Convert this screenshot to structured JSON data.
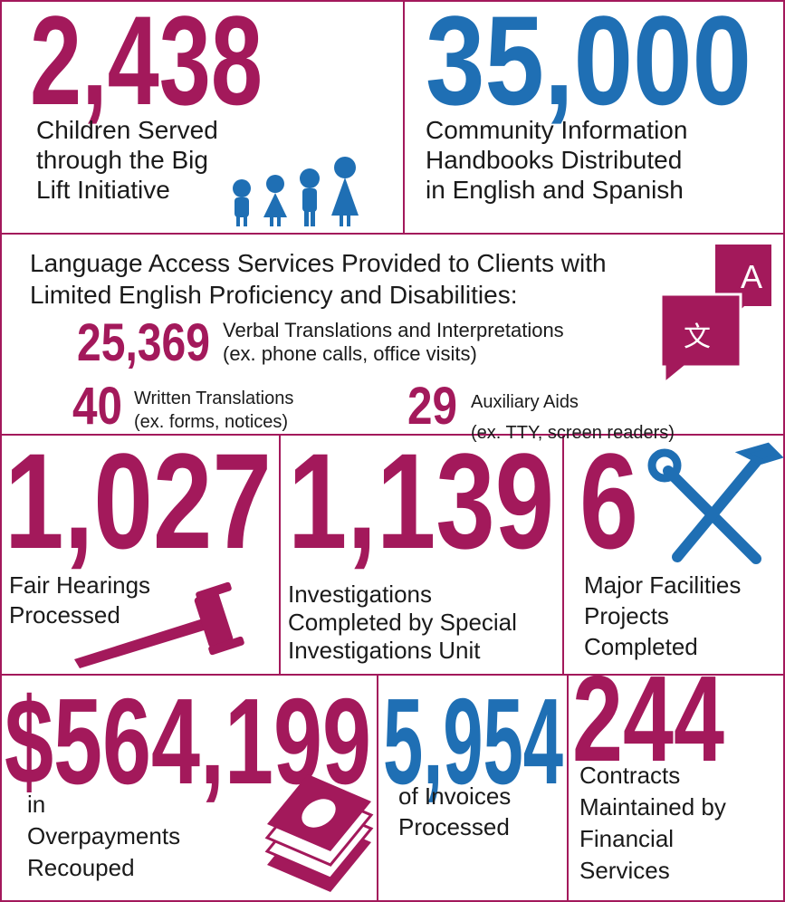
{
  "top": [
    {
      "number": "2,438",
      "lines": [
        "Children Served",
        "through the Big",
        "Lift Initiative"
      ]
    },
    {
      "number": "35,000",
      "lines": [
        "Community Information",
        "Handbooks Distributed",
        "in English and Spanish"
      ]
    }
  ],
  "language": {
    "heading": [
      "Language Access Services Provided to Clients with",
      "Limited English Proficiency and Disabilities:"
    ],
    "items": [
      {
        "number": "25,369",
        "lines": [
          "Verbal Translations and Interpretations",
          "(ex. phone calls, office visits)"
        ]
      },
      {
        "number": "40",
        "lines": [
          "Written Translations",
          "(ex. forms, notices)"
        ]
      },
      {
        "number": "29",
        "lines": [
          "Auxiliary Aids",
          "(ex. TTY, screen readers)"
        ]
      }
    ],
    "icon_glyphs": [
      "文",
      "A"
    ]
  },
  "operations": [
    {
      "number": "1,027",
      "lines": [
        "Fair Hearings",
        "Processed"
      ]
    },
    {
      "number": "1,139",
      "lines": [
        "Investigations",
        "Completed by Special",
        "Investigations Unit"
      ]
    },
    {
      "number": "6",
      "lines": [
        "Major Facilities",
        "Projects",
        "Completed"
      ]
    }
  ],
  "finance": [
    {
      "number": "$564,199",
      "lines": [
        "in",
        "Overpayments",
        "Recouped"
      ]
    },
    {
      "number": "5,954",
      "lines": [
        "of Invoices",
        "Processed"
      ]
    },
    {
      "number": "244",
      "lines": [
        "Contracts",
        "Maintained by",
        "Financial",
        "Services"
      ]
    }
  ]
}
